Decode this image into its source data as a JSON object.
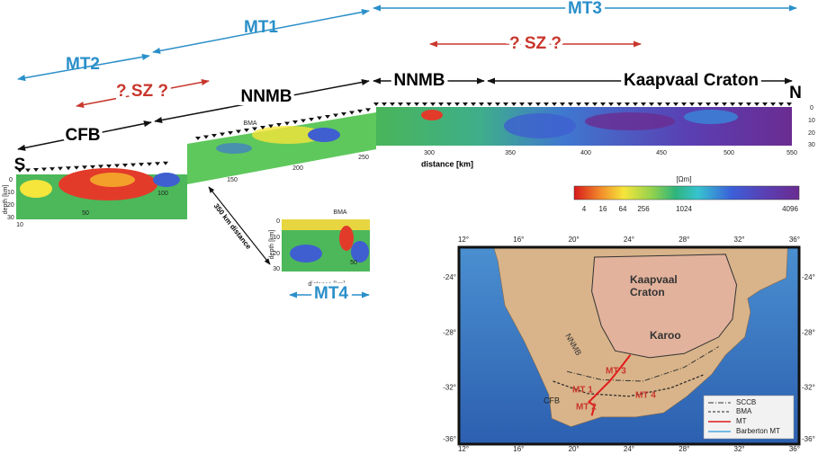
{
  "arrows": {
    "mt1": "MT1",
    "mt2": "MT2",
    "mt3": "MT3",
    "mt4": "MT4",
    "sz": "? SZ ?",
    "cfb": "CFB",
    "nnmb": "NNMB",
    "kaapvaal": "Kaapvaal Craton",
    "south": "S",
    "north": "N"
  },
  "profile": {
    "bma": "BMA",
    "distance_label": "distance [km]",
    "depth_label": "depth [km]",
    "separation": "350 km distance",
    "distance_ticks": [
      10,
      50,
      100,
      150,
      200,
      250,
      300,
      350,
      400,
      450,
      500,
      550
    ],
    "depth_ticks": [
      0,
      10,
      20,
      30
    ]
  },
  "mt4_panel": {
    "bma": "BMA",
    "distance_label": "distance [km]",
    "depth_label": "depth [km]",
    "distance_ticks": [
      50
    ],
    "depth_ticks": [
      0,
      10,
      20,
      30
    ]
  },
  "colorbar": {
    "unit": "[Ωm]",
    "ticks": [
      4,
      16,
      64,
      256,
      1024,
      4096
    ]
  },
  "map": {
    "lon_ticks": [
      "12°",
      "16°",
      "20°",
      "24°",
      "28°",
      "32°",
      "36°"
    ],
    "lat_ticks": [
      "-24°",
      "-28°",
      "-32°",
      "-36°"
    ],
    "kaapvaal": [
      "Kaapvaal",
      "Craton"
    ],
    "karoo": "Karoo",
    "nnmb": "NNMB",
    "cfb": "CFB",
    "mt_labels": [
      "MT 1",
      "MT 2",
      "MT 3",
      "MT 4"
    ],
    "legend": [
      "SCCB",
      "BMA",
      "MT",
      "Barberton MT"
    ]
  }
}
